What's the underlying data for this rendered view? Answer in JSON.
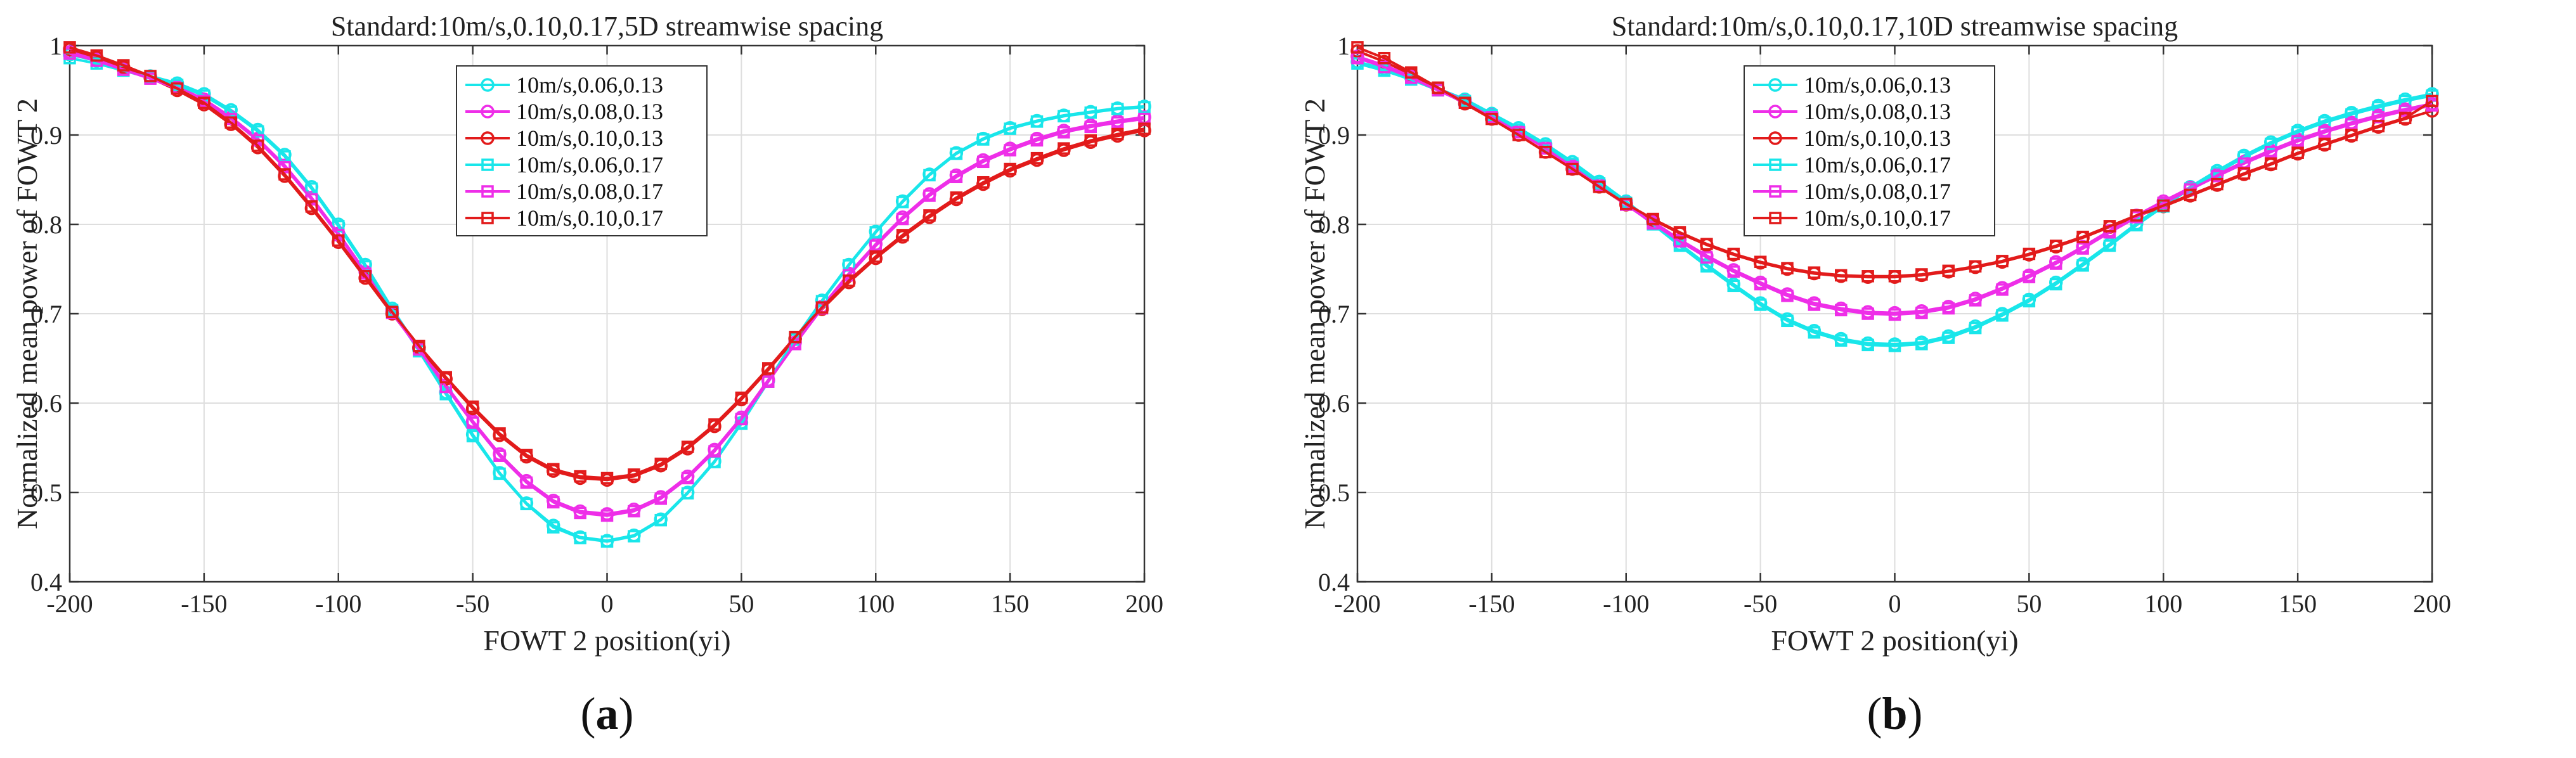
{
  "colors": {
    "cyan": "#19e6ea",
    "magenta": "#ee2ee8",
    "red": "#e21b1b"
  },
  "panels": [
    {
      "caption_letter": "a"
    },
    {
      "caption_letter": "b"
    }
  ],
  "chart_data": [
    {
      "type": "line",
      "title": "Standard:10m/s,0.10,0.17,5D streamwise spacing",
      "xlabel": "FOWT 2 position(yi)",
      "ylabel": "Normalized mean power of FOWT 2",
      "xlim": [
        -200,
        200
      ],
      "ylim": [
        0.4,
        1.0
      ],
      "xticks": [
        -200,
        -150,
        -100,
        -50,
        0,
        50,
        100,
        150,
        200
      ],
      "xtick_labels": [
        "-200",
        "-150",
        "-100",
        "-50",
        "0",
        "50",
        "100",
        "150",
        "200"
      ],
      "yticks": [
        0.4,
        0.5,
        0.6,
        0.7,
        0.8,
        0.9,
        1.0
      ],
      "ytick_labels": [
        "0.4",
        "0.5",
        "0.6",
        "0.7",
        "0.8",
        "0.9",
        "1"
      ],
      "grid": true,
      "legend_position": "top-center",
      "x": [
        -200,
        -190,
        -180,
        -170,
        -160,
        -150,
        -140,
        -130,
        -120,
        -110,
        -100,
        -90,
        -80,
        -70,
        -60,
        -50,
        -40,
        -30,
        -20,
        -10,
        0,
        10,
        20,
        30,
        40,
        50,
        60,
        70,
        80,
        90,
        100,
        110,
        120,
        130,
        140,
        150,
        160,
        170,
        180,
        190,
        200
      ],
      "series": [
        {
          "name": "10m/s,0.06,0.13",
          "color": "cyan",
          "marker": "circle",
          "values": [
            0.99,
            0.983,
            0.974,
            0.966,
            0.958,
            0.946,
            0.928,
            0.906,
            0.878,
            0.842,
            0.8,
            0.755,
            0.706,
            0.66,
            0.612,
            0.565,
            0.522,
            0.488,
            0.463,
            0.45,
            0.446,
            0.452,
            0.47,
            0.5,
            0.535,
            0.578,
            0.625,
            0.672,
            0.715,
            0.755,
            0.792,
            0.826,
            0.856,
            0.88,
            0.896,
            0.908,
            0.916,
            0.922,
            0.926,
            0.93,
            0.932
          ]
        },
        {
          "name": "10m/s,0.08,0.13",
          "color": "magenta",
          "marker": "circle",
          "values": [
            0.993,
            0.985,
            0.975,
            0.965,
            0.954,
            0.94,
            0.92,
            0.896,
            0.866,
            0.83,
            0.79,
            0.747,
            0.703,
            0.662,
            0.62,
            0.58,
            0.543,
            0.513,
            0.491,
            0.479,
            0.476,
            0.481,
            0.495,
            0.518,
            0.548,
            0.584,
            0.626,
            0.668,
            0.708,
            0.745,
            0.778,
            0.808,
            0.834,
            0.855,
            0.872,
            0.885,
            0.896,
            0.905,
            0.911,
            0.916,
            0.92
          ]
        },
        {
          "name": "10m/s,0.10,0.13",
          "color": "red",
          "marker": "circle",
          "values": [
            0.996,
            0.987,
            0.976,
            0.964,
            0.95,
            0.934,
            0.912,
            0.886,
            0.854,
            0.818,
            0.78,
            0.74,
            0.7,
            0.662,
            0.627,
            0.594,
            0.564,
            0.54,
            0.524,
            0.516,
            0.514,
            0.518,
            0.53,
            0.549,
            0.574,
            0.604,
            0.637,
            0.672,
            0.705,
            0.735,
            0.762,
            0.786,
            0.808,
            0.828,
            0.845,
            0.86,
            0.872,
            0.883,
            0.892,
            0.899,
            0.905
          ]
        },
        {
          "name": "10m/s,0.06,0.17",
          "color": "cyan",
          "marker": "square",
          "values": [
            0.986,
            0.98,
            0.972,
            0.964,
            0.956,
            0.944,
            0.926,
            0.904,
            0.876,
            0.84,
            0.798,
            0.753,
            0.704,
            0.658,
            0.61,
            0.563,
            0.521,
            0.487,
            0.461,
            0.449,
            0.445,
            0.451,
            0.469,
            0.499,
            0.534,
            0.577,
            0.624,
            0.671,
            0.714,
            0.754,
            0.791,
            0.825,
            0.855,
            0.879,
            0.895,
            0.907,
            0.915,
            0.921,
            0.925,
            0.929,
            0.931
          ]
        },
        {
          "name": "10m/s,0.08,0.17",
          "color": "magenta",
          "marker": "square",
          "values": [
            0.991,
            0.983,
            0.973,
            0.963,
            0.952,
            0.938,
            0.918,
            0.894,
            0.864,
            0.828,
            0.788,
            0.745,
            0.701,
            0.66,
            0.618,
            0.578,
            0.541,
            0.511,
            0.489,
            0.477,
            0.474,
            0.479,
            0.493,
            0.516,
            0.546,
            0.582,
            0.624,
            0.666,
            0.706,
            0.743,
            0.776,
            0.806,
            0.832,
            0.853,
            0.87,
            0.883,
            0.894,
            0.903,
            0.909,
            0.914,
            0.918
          ]
        },
        {
          "name": "10m/s,0.10,0.17",
          "color": "red",
          "marker": "square",
          "values": [
            0.998,
            0.989,
            0.978,
            0.966,
            0.952,
            0.936,
            0.914,
            0.888,
            0.856,
            0.82,
            0.782,
            0.742,
            0.702,
            0.664,
            0.629,
            0.596,
            0.566,
            0.542,
            0.526,
            0.518,
            0.516,
            0.52,
            0.532,
            0.551,
            0.576,
            0.606,
            0.639,
            0.674,
            0.707,
            0.737,
            0.764,
            0.788,
            0.81,
            0.83,
            0.847,
            0.862,
            0.874,
            0.885,
            0.894,
            0.901,
            0.907
          ]
        }
      ]
    },
    {
      "type": "line",
      "title": "Standard:10m/s,0.10,0.17,10D streamwise spacing",
      "xlabel": "FOWT 2 position(yi)",
      "ylabel": "Normalized mean power of FOWT 2",
      "xlim": [
        -200,
        200
      ],
      "ylim": [
        0.4,
        1.0
      ],
      "xticks": [
        -200,
        -150,
        -100,
        -50,
        0,
        50,
        100,
        150,
        200
      ],
      "xtick_labels": [
        "-200",
        "-150",
        "-100",
        "-50",
        "0",
        "50",
        "100",
        "150",
        "200"
      ],
      "yticks": [
        0.4,
        0.5,
        0.6,
        0.7,
        0.8,
        0.9,
        1.0
      ],
      "ytick_labels": [
        "0.4",
        "0.5",
        "0.6",
        "0.7",
        "0.8",
        "0.9",
        "1"
      ],
      "grid": true,
      "legend_position": "top-center",
      "x": [
        -200,
        -190,
        -180,
        -170,
        -160,
        -150,
        -140,
        -130,
        -120,
        -110,
        -100,
        -90,
        -80,
        -70,
        -60,
        -50,
        -40,
        -30,
        -20,
        -10,
        0,
        10,
        20,
        30,
        40,
        50,
        60,
        70,
        80,
        90,
        100,
        110,
        120,
        130,
        140,
        150,
        160,
        170,
        180,
        190,
        200
      ],
      "series": [
        {
          "name": "10m/s,0.06,0.13",
          "color": "cyan",
          "marker": "circle",
          "values": [
            0.982,
            0.974,
            0.964,
            0.952,
            0.94,
            0.924,
            0.908,
            0.89,
            0.87,
            0.848,
            0.826,
            0.802,
            0.778,
            0.755,
            0.733,
            0.712,
            0.694,
            0.681,
            0.672,
            0.667,
            0.666,
            0.668,
            0.675,
            0.686,
            0.7,
            0.716,
            0.735,
            0.756,
            0.778,
            0.801,
            0.822,
            0.842,
            0.86,
            0.877,
            0.892,
            0.905,
            0.916,
            0.925,
            0.933,
            0.94,
            0.946
          ]
        },
        {
          "name": "10m/s,0.08,0.13",
          "color": "magenta",
          "marker": "circle",
          "values": [
            0.988,
            0.978,
            0.966,
            0.952,
            0.938,
            0.922,
            0.905,
            0.887,
            0.866,
            0.845,
            0.824,
            0.803,
            0.783,
            0.765,
            0.749,
            0.735,
            0.722,
            0.712,
            0.706,
            0.702,
            0.701,
            0.703,
            0.708,
            0.717,
            0.729,
            0.743,
            0.758,
            0.775,
            0.793,
            0.81,
            0.826,
            0.841,
            0.856,
            0.87,
            0.883,
            0.895,
            0.905,
            0.914,
            0.922,
            0.929,
            0.935
          ]
        },
        {
          "name": "10m/s,0.10,0.13",
          "color": "red",
          "marker": "circle",
          "values": [
            0.994,
            0.982,
            0.968,
            0.952,
            0.935,
            0.918,
            0.9,
            0.881,
            0.862,
            0.842,
            0.822,
            0.805,
            0.79,
            0.777,
            0.766,
            0.757,
            0.75,
            0.745,
            0.742,
            0.741,
            0.741,
            0.743,
            0.747,
            0.752,
            0.758,
            0.766,
            0.775,
            0.785,
            0.797,
            0.809,
            0.82,
            0.832,
            0.844,
            0.856,
            0.867,
            0.879,
            0.889,
            0.899,
            0.909,
            0.918,
            0.927
          ]
        },
        {
          "name": "10m/s,0.06,0.17",
          "color": "cyan",
          "marker": "square",
          "values": [
            0.98,
            0.972,
            0.962,
            0.95,
            0.938,
            0.922,
            0.906,
            0.888,
            0.868,
            0.846,
            0.824,
            0.8,
            0.776,
            0.753,
            0.731,
            0.71,
            0.692,
            0.679,
            0.67,
            0.665,
            0.664,
            0.666,
            0.673,
            0.684,
            0.698,
            0.714,
            0.733,
            0.754,
            0.776,
            0.799,
            0.82,
            0.84,
            0.858,
            0.875,
            0.89,
            0.903,
            0.914,
            0.923,
            0.931,
            0.938,
            0.944
          ]
        },
        {
          "name": "10m/s,0.08,0.17",
          "color": "magenta",
          "marker": "square",
          "values": [
            0.986,
            0.976,
            0.964,
            0.95,
            0.936,
            0.92,
            0.903,
            0.885,
            0.864,
            0.843,
            0.822,
            0.801,
            0.781,
            0.763,
            0.747,
            0.733,
            0.72,
            0.71,
            0.704,
            0.7,
            0.699,
            0.701,
            0.706,
            0.715,
            0.727,
            0.741,
            0.756,
            0.773,
            0.791,
            0.808,
            0.824,
            0.839,
            0.854,
            0.868,
            0.881,
            0.893,
            0.903,
            0.912,
            0.92,
            0.927,
            0.933
          ]
        },
        {
          "name": "10m/s,0.10,0.17",
          "color": "red",
          "marker": "square",
          "values": [
            0.998,
            0.986,
            0.97,
            0.953,
            0.936,
            0.918,
            0.9,
            0.881,
            0.862,
            0.842,
            0.823,
            0.806,
            0.791,
            0.778,
            0.767,
            0.758,
            0.751,
            0.746,
            0.743,
            0.742,
            0.742,
            0.744,
            0.748,
            0.753,
            0.759,
            0.767,
            0.776,
            0.786,
            0.798,
            0.81,
            0.821,
            0.833,
            0.845,
            0.857,
            0.868,
            0.88,
            0.89,
            0.9,
            0.91,
            0.919,
            0.938
          ]
        }
      ]
    }
  ]
}
